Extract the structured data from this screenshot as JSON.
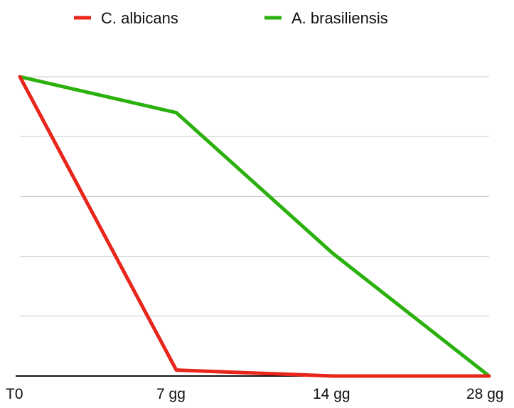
{
  "chart_data": {
    "type": "line",
    "title": "",
    "xlabel": "",
    "ylabel": "",
    "categories": [
      "T0",
      "7 gg",
      "14 gg",
      "28 gg"
    ],
    "ylim": [
      0,
      5
    ],
    "y_gridlines": 5,
    "grid": true,
    "legend_position": "top-center",
    "series": [
      {
        "name": "C. albicans",
        "color": "#e8261b",
        "values": [
          5,
          0.1,
          0,
          0
        ]
      },
      {
        "name": "A. brasiliensis",
        "color": "#2bb10e",
        "values": [
          5,
          4.4,
          2.05,
          0
        ]
      }
    ],
    "colors": {
      "grid": "#c8c8c8",
      "axis": "#111111"
    }
  }
}
